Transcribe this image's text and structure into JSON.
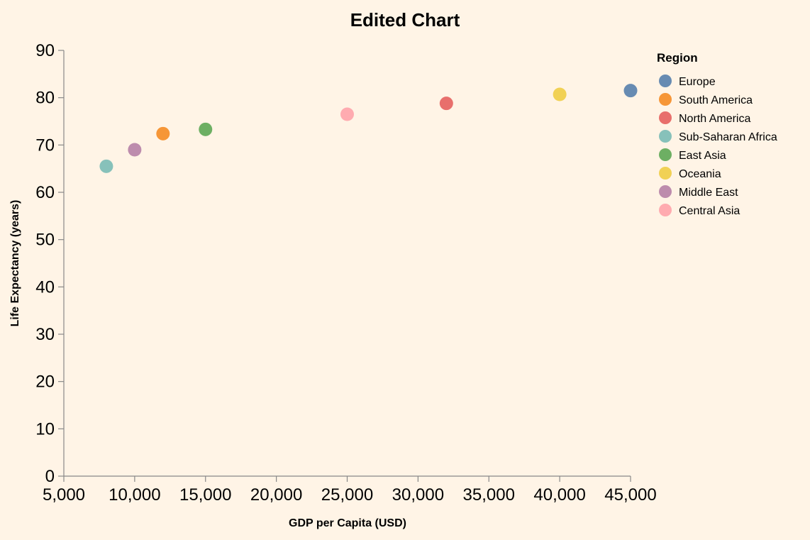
{
  "chart_data": {
    "type": "scatter",
    "title": "Edited Chart",
    "xlabel": "GDP per Capita (USD)",
    "ylabel": "Life Expectancy (years)",
    "xlim": [
      5000,
      45000
    ],
    "ylim": [
      0,
      90
    ],
    "x_ticks": [
      5000,
      10000,
      15000,
      20000,
      25000,
      30000,
      35000,
      40000,
      45000
    ],
    "x_tick_labels": [
      "5,000",
      "10,000",
      "15,000",
      "20,000",
      "25,000",
      "30,000",
      "35,000",
      "40,000",
      "45,000"
    ],
    "y_ticks": [
      0,
      10,
      20,
      30,
      40,
      50,
      60,
      70,
      80,
      90
    ],
    "y_tick_labels": [
      "0",
      "10",
      "20",
      "30",
      "40",
      "50",
      "60",
      "70",
      "80",
      "90"
    ],
    "grid": false,
    "legend": {
      "title": "Region",
      "placement": "top-right",
      "entries": [
        {
          "name": "Europe",
          "color": "#4c78a8"
        },
        {
          "name": "South America",
          "color": "#f58518"
        },
        {
          "name": "North America",
          "color": "#e45756"
        },
        {
          "name": "Sub-Saharan Africa",
          "color": "#72b7b2"
        },
        {
          "name": "East Asia",
          "color": "#54a24b"
        },
        {
          "name": "Oceania",
          "color": "#eeca3b"
        },
        {
          "name": "Middle East",
          "color": "#b279a2"
        },
        {
          "name": "Central Asia",
          "color": "#ff9da6"
        }
      ]
    },
    "points": [
      {
        "region": "Europe",
        "x": 45000,
        "y": 81.5
      },
      {
        "region": "South America",
        "x": 12000,
        "y": 72.4
      },
      {
        "region": "North America",
        "x": 32000,
        "y": 78.8
      },
      {
        "region": "Sub-Saharan Africa",
        "x": 8000,
        "y": 65.5
      },
      {
        "region": "East Asia",
        "x": 15000,
        "y": 73.3
      },
      {
        "region": "Oceania",
        "x": 40000,
        "y": 80.7
      },
      {
        "region": "Middle East",
        "x": 10000,
        "y": 69.0
      },
      {
        "region": "Central Asia",
        "x": 25000,
        "y": 76.5
      }
    ]
  }
}
